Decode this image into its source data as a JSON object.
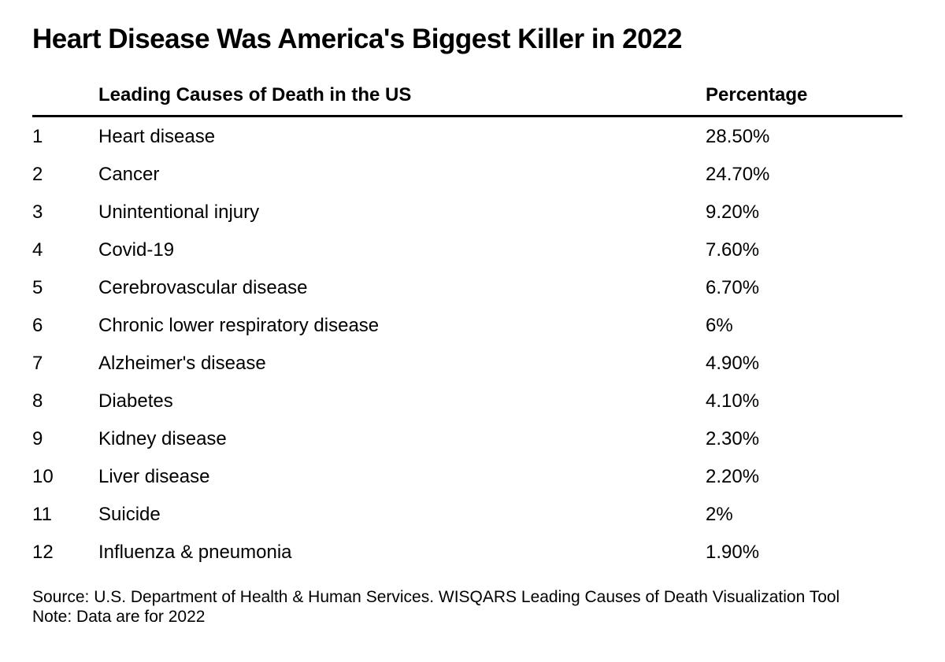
{
  "chart_data": {
    "type": "table",
    "title": "Heart Disease Was America's Biggest Killer in 2022",
    "columns": [
      "",
      "Leading Causes of Death in the US",
      "Percentage"
    ],
    "rows": [
      {
        "rank": "1",
        "cause": "Heart disease",
        "percentage": "28.50%"
      },
      {
        "rank": "2",
        "cause": "Cancer",
        "percentage": "24.70%"
      },
      {
        "rank": "3",
        "cause": "Unintentional injury",
        "percentage": "9.20%"
      },
      {
        "rank": "4",
        "cause": "Covid-19",
        "percentage": "7.60%"
      },
      {
        "rank": "5",
        "cause": "Cerebrovascular disease",
        "percentage": "6.70%"
      },
      {
        "rank": "6",
        "cause": "Chronic lower respiratory disease",
        "percentage": "6%"
      },
      {
        "rank": "7",
        "cause": "Alzheimer's disease",
        "percentage": "4.90%"
      },
      {
        "rank": "8",
        "cause": "Diabetes",
        "percentage": "4.10%"
      },
      {
        "rank": "9",
        "cause": "Kidney disease",
        "percentage": "2.30%"
      },
      {
        "rank": "10",
        "cause": "Liver disease",
        "percentage": "2.20%"
      },
      {
        "rank": "11",
        "cause": "Suicide",
        "percentage": "2%"
      },
      {
        "rank": "12",
        "cause": "Influenza & pneumonia",
        "percentage": "1.90%"
      }
    ],
    "source": "Source: U.S. Department of Health & Human Services. WISQARS Leading Causes of Death Visualization Tool",
    "note": "Note: Data are for 2022"
  }
}
